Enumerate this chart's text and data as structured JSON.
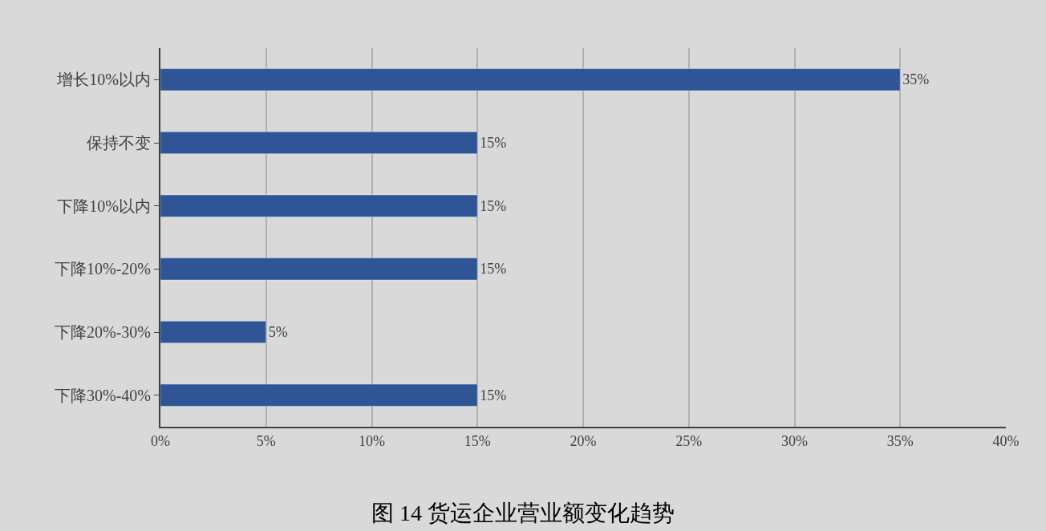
{
  "chart_data": {
    "type": "bar",
    "orientation": "horizontal",
    "title": "图 14 货运企业营业额变化趋势",
    "categories": [
      "增长10%以内",
      "保持不变",
      "下降10%以内",
      "下降10%-20%",
      "下降20%-30%",
      "下降30%-40%"
    ],
    "values": [
      35,
      15,
      15,
      15,
      5,
      15
    ],
    "value_labels": [
      "35%",
      "15%",
      "15%",
      "15%",
      "5%",
      "15%"
    ],
    "color": "#2f5597",
    "xlim": [
      0,
      40
    ],
    "xticks": [
      {
        "value": 0,
        "label": "0%"
      },
      {
        "value": 5,
        "label": "5%"
      },
      {
        "value": 10,
        "label": "10%"
      },
      {
        "value": 15,
        "label": "15%"
      },
      {
        "value": 20,
        "label": "20%"
      },
      {
        "value": 25,
        "label": "25%"
      },
      {
        "value": 30,
        "label": "30%"
      },
      {
        "value": 35,
        "label": "35%"
      },
      {
        "value": 40,
        "label": "40%"
      }
    ],
    "grid": "x",
    "legend": false
  }
}
